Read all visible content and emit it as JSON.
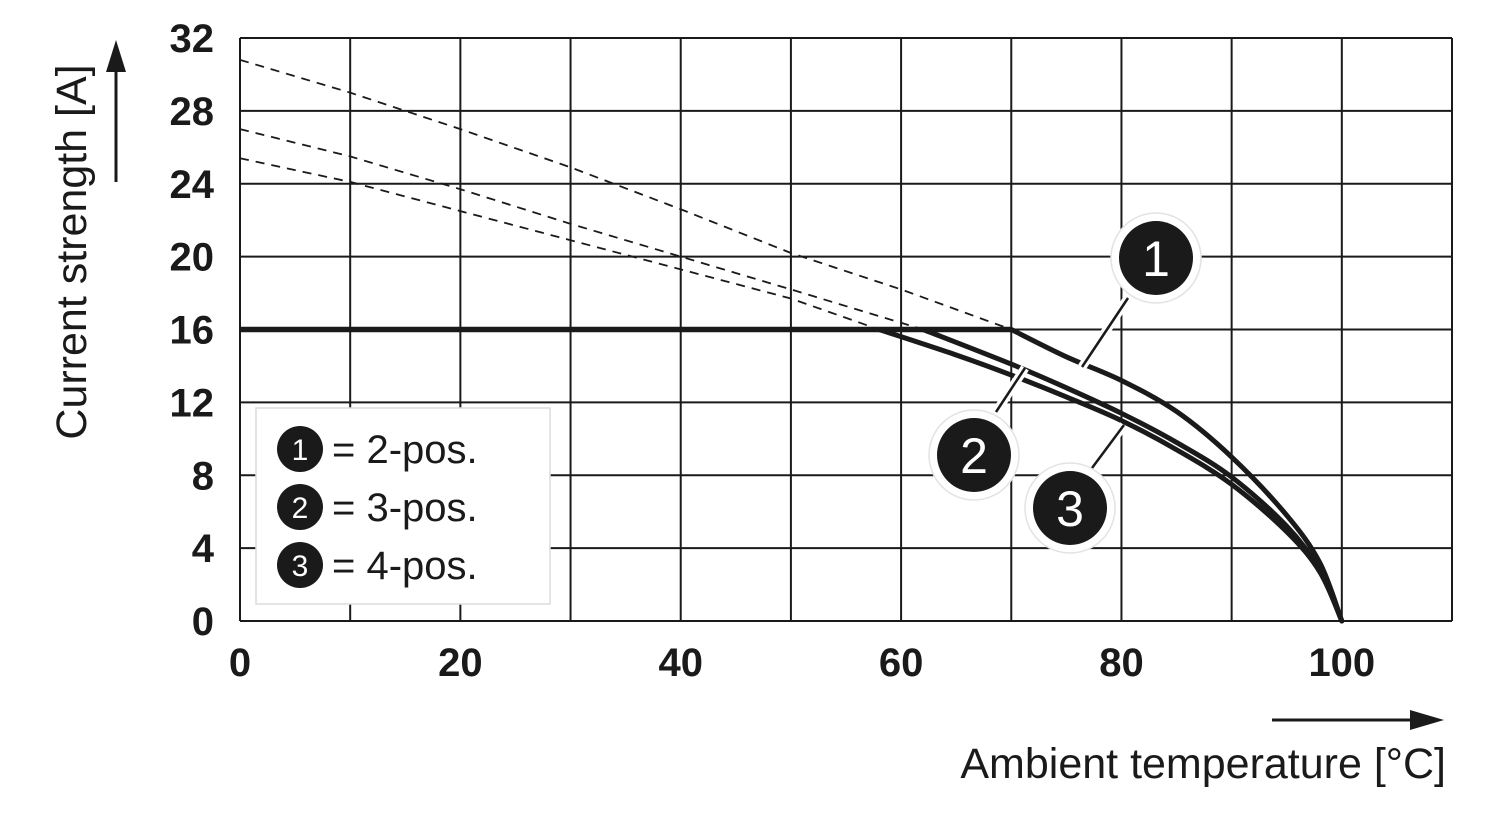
{
  "chart_data": {
    "type": "line",
    "title": "",
    "xlabel": "Ambient temperature [°C]",
    "ylabel": "Current strength [A]",
    "xlim": [
      0,
      110
    ],
    "ylim": [
      0,
      32
    ],
    "x_ticks": [
      0,
      20,
      40,
      60,
      80,
      100
    ],
    "y_ticks": [
      0,
      4,
      8,
      12,
      16,
      20,
      24,
      28,
      32
    ],
    "grid": true,
    "legend_position": "bottom-left",
    "legend": [
      {
        "badge": "1",
        "text": "= 2-pos."
      },
      {
        "badge": "2",
        "text": "= 3-pos."
      },
      {
        "badge": "3",
        "text": "= 4-pos."
      }
    ],
    "rated_current": {
      "x": [
        0,
        70
      ],
      "y": [
        16,
        16
      ]
    },
    "series": [
      {
        "label": "1",
        "x": [
          70,
          75,
          80,
          85,
          90,
          95,
          98,
          100
        ],
        "y": [
          16.0,
          14.5,
          13.2,
          11.5,
          9.0,
          5.8,
          3.2,
          0
        ],
        "dashed_x": [
          0,
          10,
          20,
          30,
          40,
          50,
          60,
          70
        ],
        "dashed_y": [
          30.8,
          29.0,
          27.0,
          24.9,
          22.6,
          20.2,
          18.2,
          16.0
        ]
      },
      {
        "label": "2",
        "x": [
          62,
          70,
          75,
          80,
          85,
          90,
          95,
          98,
          100
        ],
        "y": [
          16.0,
          14.1,
          12.8,
          11.4,
          9.8,
          7.9,
          5.2,
          2.8,
          0
        ],
        "dashed_x": [
          0,
          10,
          20,
          30,
          40,
          50,
          62
        ],
        "dashed_y": [
          27.0,
          25.5,
          23.7,
          21.8,
          20.0,
          18.2,
          16.0
        ]
      },
      {
        "label": "3",
        "x": [
          58,
          65,
          70,
          75,
          80,
          85,
          90,
          95,
          98,
          100
        ],
        "y": [
          16.0,
          14.6,
          13.5,
          12.3,
          11.0,
          9.4,
          7.5,
          4.9,
          2.7,
          0
        ],
        "dashed_x": [
          0,
          10,
          20,
          30,
          40,
          50,
          58
        ],
        "dashed_y": [
          25.4,
          24.1,
          22.5,
          20.9,
          19.3,
          17.7,
          16.0
        ]
      }
    ]
  }
}
